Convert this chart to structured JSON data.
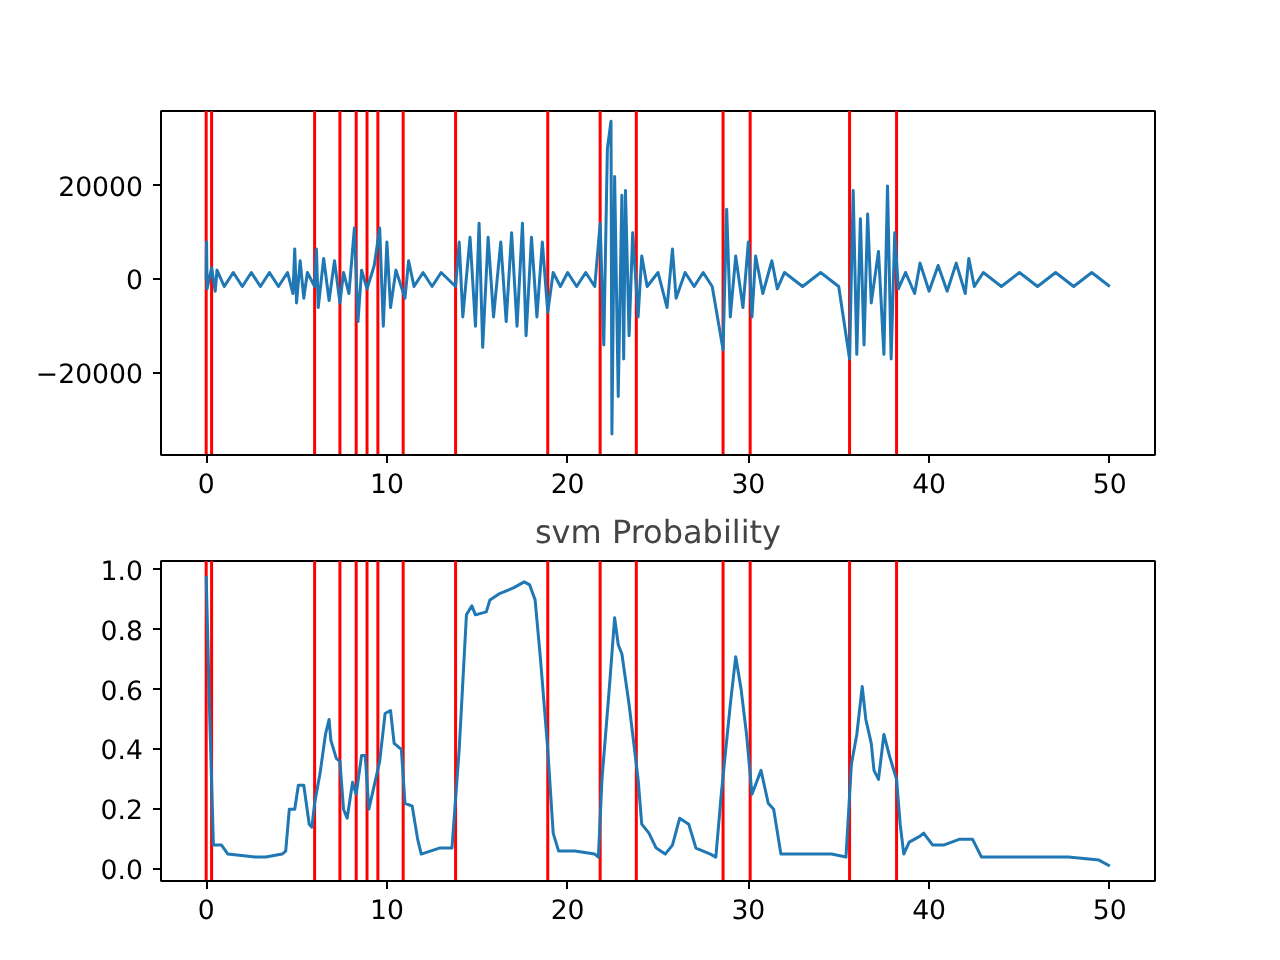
{
  "chart_data": [
    {
      "type": "line",
      "grid": false,
      "xlim": [
        -2.5,
        52.5
      ],
      "xticks": [
        0,
        10,
        20,
        30,
        40,
        50
      ],
      "ylim": [
        -37500,
        36000
      ],
      "yticks": [
        {
          "value": -20000,
          "label": "−20000"
        },
        0,
        20000
      ],
      "series": [
        {
          "color": "#1f77b4",
          "x": [
            0,
            0.02,
            0.05,
            0.3,
            0.5,
            0.6,
            1,
            1.5,
            2,
            2.5,
            3,
            3.5,
            4,
            4.5,
            4.8,
            4.9,
            5.0,
            5.2,
            5.4,
            5.6,
            6.0,
            6.1,
            6.2,
            6.5,
            6.8,
            7.1,
            7.4,
            7.6,
            7.9,
            8.2,
            8.4,
            8.6,
            8.9,
            9.3,
            9.6,
            9.8,
            10.0,
            10.2,
            10.5,
            11.0,
            11.2,
            11.5,
            12,
            12.5,
            13,
            13.8,
            14.0,
            14.2,
            14.6,
            14.9,
            15.1,
            15.3,
            15.6,
            15.9,
            16.3,
            16.6,
            16.9,
            17.2,
            17.5,
            17.7,
            18.0,
            18.3,
            18.6,
            18.9,
            19.2,
            19.6,
            20,
            20.5,
            21,
            21.5,
            21.8,
            22.0,
            22.2,
            22.4,
            22.45,
            22.6,
            22.8,
            23.0,
            23.1,
            23.2,
            23.4,
            23.6,
            23.9,
            24.1,
            24.4,
            25,
            25.5,
            25.8,
            26.0,
            26.5,
            27,
            27.5,
            28,
            28.6,
            28.8,
            29.0,
            29.3,
            29.7,
            30.0,
            30.2,
            30.4,
            30.8,
            31.3,
            31.6,
            32,
            33,
            34,
            35,
            35.6,
            35.8,
            36.0,
            36.2,
            36.4,
            36.6,
            36.8,
            37.2,
            37.5,
            37.7,
            37.9,
            38.1,
            38.3,
            38.7,
            39.2,
            39.5,
            40,
            40.5,
            41,
            41.5,
            42,
            42.2,
            42.5,
            43,
            44,
            45,
            46,
            47,
            48,
            49,
            50
          ],
          "values": [
            0,
            8000,
            -2000,
            2500,
            -2500,
            2000,
            -1500,
            1500,
            -1500,
            1500,
            -1500,
            1500,
            -1500,
            1500,
            -3000,
            6500,
            -5000,
            4000,
            -4000,
            1500,
            -1500,
            6500,
            -6000,
            4500,
            -4500,
            4000,
            -5000,
            1500,
            -3000,
            11000,
            -9000,
            2000,
            -2000,
            3000,
            11000,
            -10000,
            8000,
            -6000,
            2000,
            -4000,
            4000,
            -1500,
            1500,
            -1500,
            1500,
            -1500,
            8000,
            -8000,
            9000,
            -10000,
            12000,
            -14500,
            9000,
            -8000,
            8000,
            -9000,
            10000,
            -10000,
            12000,
            -12000,
            9000,
            -8000,
            8000,
            -7000,
            1500,
            -1500,
            1500,
            -1500,
            1500,
            -1500,
            12000,
            -14000,
            28000,
            33800,
            -33000,
            22000,
            -25000,
            18000,
            -17000,
            19000,
            -12000,
            10000,
            -8000,
            5000,
            -1500,
            1500,
            -6000,
            6500,
            -4000,
            1500,
            -1500,
            1500,
            -1500,
            -15000,
            15000,
            -8000,
            5000,
            -6000,
            8000,
            -8000,
            5000,
            -3000,
            4000,
            -2000,
            1500,
            -1500,
            1500,
            -1500,
            -17000,
            19000,
            -16000,
            13000,
            -14000,
            14000,
            -5000,
            6000,
            -16000,
            20000,
            -17000,
            10000,
            -2000,
            1500,
            -3000,
            3500,
            -2500,
            3000,
            -2500,
            3500,
            -3000,
            4500,
            -1500,
            1500,
            -1500,
            1500,
            -1500,
            1500,
            -1500,
            1500,
            -1500
          ]
        }
      ],
      "ref_lines": [
        {
          "axis": "x",
          "value": 0.0,
          "color": "#ff0000"
        },
        {
          "axis": "x",
          "value": 0.3,
          "color": "#ff0000"
        },
        {
          "axis": "x",
          "value": 6.0,
          "color": "#ff0000"
        },
        {
          "axis": "x",
          "value": 7.4,
          "color": "#ff0000"
        },
        {
          "axis": "x",
          "value": 8.3,
          "color": "#ff0000"
        },
        {
          "axis": "x",
          "value": 8.9,
          "color": "#ff0000"
        },
        {
          "axis": "x",
          "value": 9.5,
          "color": "#ff0000"
        },
        {
          "axis": "x",
          "value": 10.9,
          "color": "#ff0000"
        },
        {
          "axis": "x",
          "value": 13.8,
          "color": "#ff0000"
        },
        {
          "axis": "x",
          "value": 18.9,
          "color": "#ff0000"
        },
        {
          "axis": "x",
          "value": 21.8,
          "color": "#ff0000"
        },
        {
          "axis": "x",
          "value": 23.8,
          "color": "#ff0000"
        },
        {
          "axis": "x",
          "value": 28.6,
          "color": "#ff0000"
        },
        {
          "axis": "x",
          "value": 30.1,
          "color": "#ff0000"
        },
        {
          "axis": "x",
          "value": 35.6,
          "color": "#ff0000"
        },
        {
          "axis": "x",
          "value": 38.2,
          "color": "#ff0000"
        }
      ]
    },
    {
      "type": "line",
      "title": "svm Probability",
      "grid": false,
      "xlim": [
        -2.5,
        52.5
      ],
      "xticks": [
        0,
        10,
        20,
        30,
        40,
        50
      ],
      "ylim": [
        -0.04,
        1.03
      ],
      "yticks": [
        {
          "value": 0,
          "label": "0.0"
        },
        {
          "value": 0.2,
          "label": "0.2"
        },
        {
          "value": 0.4,
          "label": "0.4"
        },
        {
          "value": 0.6,
          "label": "0.6"
        },
        {
          "value": 0.8,
          "label": "0.8"
        },
        {
          "value": 1.0,
          "label": "1.0"
        }
      ],
      "series": [
        {
          "color": "#1f77b4",
          "x": [
            0,
            0.2,
            0.4,
            0.85,
            1.2,
            2.7,
            3.3,
            4.2,
            4.4,
            4.6,
            4.9,
            5.1,
            5.4,
            5.7,
            5.85,
            6.0,
            6.3,
            6.6,
            6.8,
            6.9,
            7.2,
            7.4,
            7.6,
            7.8,
            8.1,
            8.3,
            8.6,
            8.8,
            9.0,
            9.3,
            9.6,
            9.9,
            10.2,
            10.4,
            10.8,
            11.0,
            11.4,
            11.7,
            11.9,
            12.9,
            13.6,
            14.0,
            14.4,
            14.7,
            14.9,
            15.5,
            15.7,
            16.2,
            17.0,
            17.6,
            17.9,
            18.2,
            18.5,
            18.9,
            19.2,
            19.5,
            20.4,
            21.5,
            21.7,
            21.9,
            22.3,
            22.6,
            22.8,
            23.0,
            23.4,
            23.9,
            24.1,
            24.5,
            24.9,
            25.4,
            25.8,
            26.2,
            26.7,
            27.1,
            27.9,
            28.2,
            28.5,
            29.0,
            29.3,
            29.6,
            29.9,
            30.2,
            30.7,
            31.1,
            31.4,
            31.8,
            32.7,
            34.6,
            35.4,
            35.7,
            36.0,
            36.3,
            36.5,
            36.8,
            36.95,
            37.2,
            37.5,
            37.8,
            38.2,
            38.4,
            38.6,
            38.9,
            39.5,
            39.7,
            40.2,
            40.8,
            41.7,
            42.4,
            42.9,
            44.0,
            47.7,
            49.4,
            50.0
          ],
          "values": [
            0.98,
            0.5,
            0.08,
            0.08,
            0.05,
            0.04,
            0.04,
            0.05,
            0.06,
            0.2,
            0.2,
            0.28,
            0.28,
            0.15,
            0.14,
            0.22,
            0.32,
            0.45,
            0.5,
            0.43,
            0.37,
            0.36,
            0.2,
            0.17,
            0.29,
            0.25,
            0.38,
            0.38,
            0.2,
            0.28,
            0.36,
            0.52,
            0.53,
            0.42,
            0.4,
            0.22,
            0.21,
            0.1,
            0.05,
            0.07,
            0.07,
            0.4,
            0.85,
            0.88,
            0.85,
            0.86,
            0.9,
            0.92,
            0.94,
            0.96,
            0.95,
            0.9,
            0.7,
            0.4,
            0.12,
            0.06,
            0.06,
            0.05,
            0.04,
            0.3,
            0.6,
            0.84,
            0.75,
            0.72,
            0.55,
            0.3,
            0.15,
            0.12,
            0.07,
            0.05,
            0.08,
            0.17,
            0.15,
            0.07,
            0.05,
            0.04,
            0.25,
            0.55,
            0.71,
            0.6,
            0.45,
            0.25,
            0.33,
            0.22,
            0.2,
            0.05,
            0.05,
            0.05,
            0.04,
            0.35,
            0.45,
            0.61,
            0.5,
            0.42,
            0.33,
            0.3,
            0.45,
            0.38,
            0.3,
            0.15,
            0.05,
            0.09,
            0.11,
            0.12,
            0.08,
            0.08,
            0.1,
            0.1,
            0.04,
            0.04,
            0.04,
            0.03,
            0.01
          ]
        }
      ],
      "ref_lines": [
        {
          "axis": "x",
          "value": 0.0,
          "color": "#ff0000"
        },
        {
          "axis": "x",
          "value": 0.3,
          "color": "#ff0000"
        },
        {
          "axis": "x",
          "value": 6.0,
          "color": "#ff0000"
        },
        {
          "axis": "x",
          "value": 7.4,
          "color": "#ff0000"
        },
        {
          "axis": "x",
          "value": 8.3,
          "color": "#ff0000"
        },
        {
          "axis": "x",
          "value": 8.9,
          "color": "#ff0000"
        },
        {
          "axis": "x",
          "value": 9.5,
          "color": "#ff0000"
        },
        {
          "axis": "x",
          "value": 10.9,
          "color": "#ff0000"
        },
        {
          "axis": "x",
          "value": 13.8,
          "color": "#ff0000"
        },
        {
          "axis": "x",
          "value": 18.9,
          "color": "#ff0000"
        },
        {
          "axis": "x",
          "value": 21.8,
          "color": "#ff0000"
        },
        {
          "axis": "x",
          "value": 23.8,
          "color": "#ff0000"
        },
        {
          "axis": "x",
          "value": 28.6,
          "color": "#ff0000"
        },
        {
          "axis": "x",
          "value": 30.1,
          "color": "#ff0000"
        },
        {
          "axis": "x",
          "value": 35.6,
          "color": "#ff0000"
        },
        {
          "axis": "x",
          "value": 38.2,
          "color": "#ff0000"
        }
      ]
    }
  ]
}
